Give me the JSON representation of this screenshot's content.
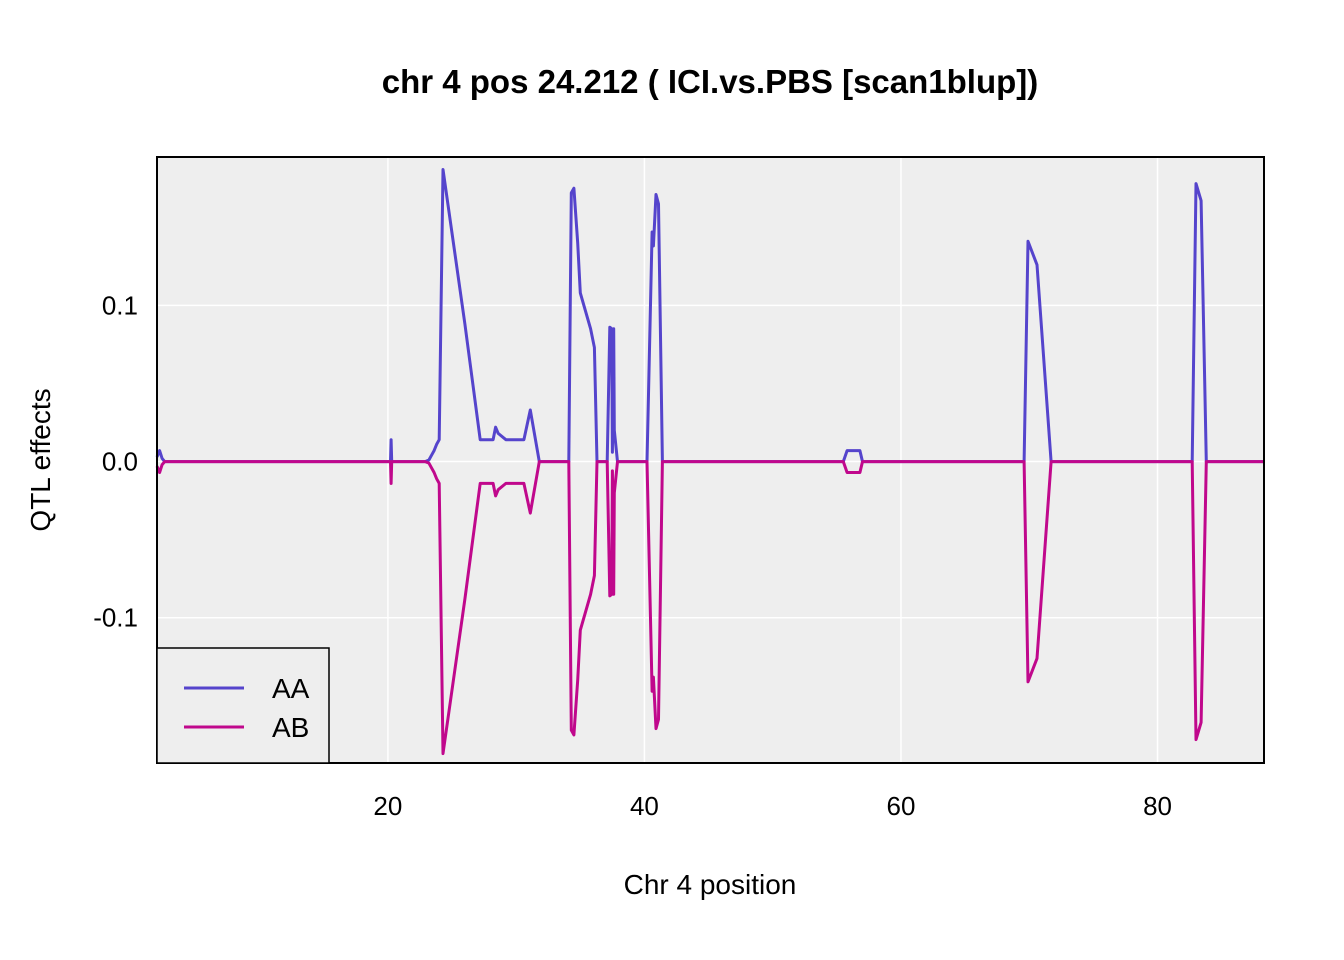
{
  "chart_data": {
    "type": "line",
    "title": "chr 4 pos 24.212 ( ICI.vs.PBS  [scan1blup])",
    "xlabel": "Chr 4 position",
    "ylabel": "QTL effects",
    "xlim": [
      2.0,
      88.3
    ],
    "ylim": [
      -0.193,
      0.195
    ],
    "x_ticks": [
      20,
      40,
      60,
      80
    ],
    "y_ticks": [
      -0.1,
      0.0,
      0.1
    ],
    "y_tick_labels": [
      "-0.1",
      "0.0",
      "0.1"
    ],
    "grid": true,
    "background": "#EEEEEE",
    "legend_position": "bottom-left",
    "series": [
      {
        "name": "AA",
        "color": "#5544CC",
        "x": [
          2.0,
          2.2,
          2.4,
          2.6,
          2.8,
          20.2,
          20.25,
          20.3,
          22.9,
          23.2,
          23.4,
          23.6,
          23.8,
          24.0,
          24.3,
          26.0,
          27.2,
          28.2,
          28.4,
          28.6,
          29.2,
          30.6,
          31.1,
          31.8,
          34.1,
          34.3,
          34.5,
          34.8,
          35.0,
          35.8,
          36.1,
          36.3,
          37.1,
          37.3,
          37.45,
          37.5,
          37.6,
          37.65,
          37.9,
          40.2,
          40.6,
          40.7,
          40.9,
          41.1,
          41.4,
          42.0,
          55.5,
          55.8,
          56.8,
          57.0,
          69.6,
          69.9,
          70.6,
          71.7,
          82.7,
          83.0,
          83.4,
          83.8,
          88.3
        ],
        "values": [
          0.003,
          0.007,
          0.002,
          0.0,
          0.0,
          0.0,
          0.014,
          0.0,
          0.0,
          0.001,
          0.004,
          0.007,
          0.011,
          0.014,
          0.187,
          0.088,
          0.014,
          0.014,
          0.022,
          0.018,
          0.014,
          0.014,
          0.033,
          0.0,
          0.0,
          0.172,
          0.175,
          0.14,
          0.108,
          0.085,
          0.073,
          0.0,
          0.0,
          0.086,
          0.085,
          0.006,
          0.085,
          0.02,
          0.0,
          0.0,
          0.147,
          0.138,
          0.171,
          0.165,
          0.0,
          0.0,
          0.0,
          0.007,
          0.007,
          0.0,
          0.0,
          0.141,
          0.126,
          0.0,
          0.0,
          0.178,
          0.167,
          0.0,
          0.0
        ]
      },
      {
        "name": "AB",
        "color": "#C0088C",
        "x": [
          2.0,
          2.2,
          2.4,
          2.6,
          2.8,
          20.2,
          20.25,
          20.3,
          22.9,
          23.2,
          23.4,
          23.6,
          23.8,
          24.0,
          24.3,
          26.0,
          27.2,
          28.2,
          28.4,
          28.6,
          29.2,
          30.6,
          31.1,
          31.8,
          34.1,
          34.3,
          34.5,
          34.8,
          35.0,
          35.8,
          36.1,
          36.3,
          37.1,
          37.3,
          37.45,
          37.5,
          37.6,
          37.65,
          37.9,
          40.2,
          40.6,
          40.7,
          40.9,
          41.1,
          41.4,
          42.0,
          55.5,
          55.8,
          56.8,
          57.0,
          69.6,
          69.9,
          70.6,
          71.7,
          82.7,
          83.0,
          83.4,
          83.8,
          88.3
        ],
        "values": [
          -0.003,
          -0.007,
          -0.002,
          0.0,
          0.0,
          0.0,
          -0.014,
          0.0,
          0.0,
          -0.001,
          -0.004,
          -0.007,
          -0.011,
          -0.014,
          -0.187,
          -0.088,
          -0.014,
          -0.014,
          -0.022,
          -0.018,
          -0.014,
          -0.014,
          -0.033,
          0.0,
          0.0,
          -0.172,
          -0.175,
          -0.14,
          -0.108,
          -0.085,
          -0.073,
          0.0,
          0.0,
          -0.086,
          -0.085,
          -0.006,
          -0.085,
          -0.02,
          0.0,
          0.0,
          -0.147,
          -0.138,
          -0.171,
          -0.165,
          0.0,
          0.0,
          0.0,
          -0.007,
          -0.007,
          0.0,
          0.0,
          -0.141,
          -0.126,
          0.0,
          0.0,
          -0.178,
          -0.167,
          0.0,
          0.0
        ]
      }
    ]
  }
}
